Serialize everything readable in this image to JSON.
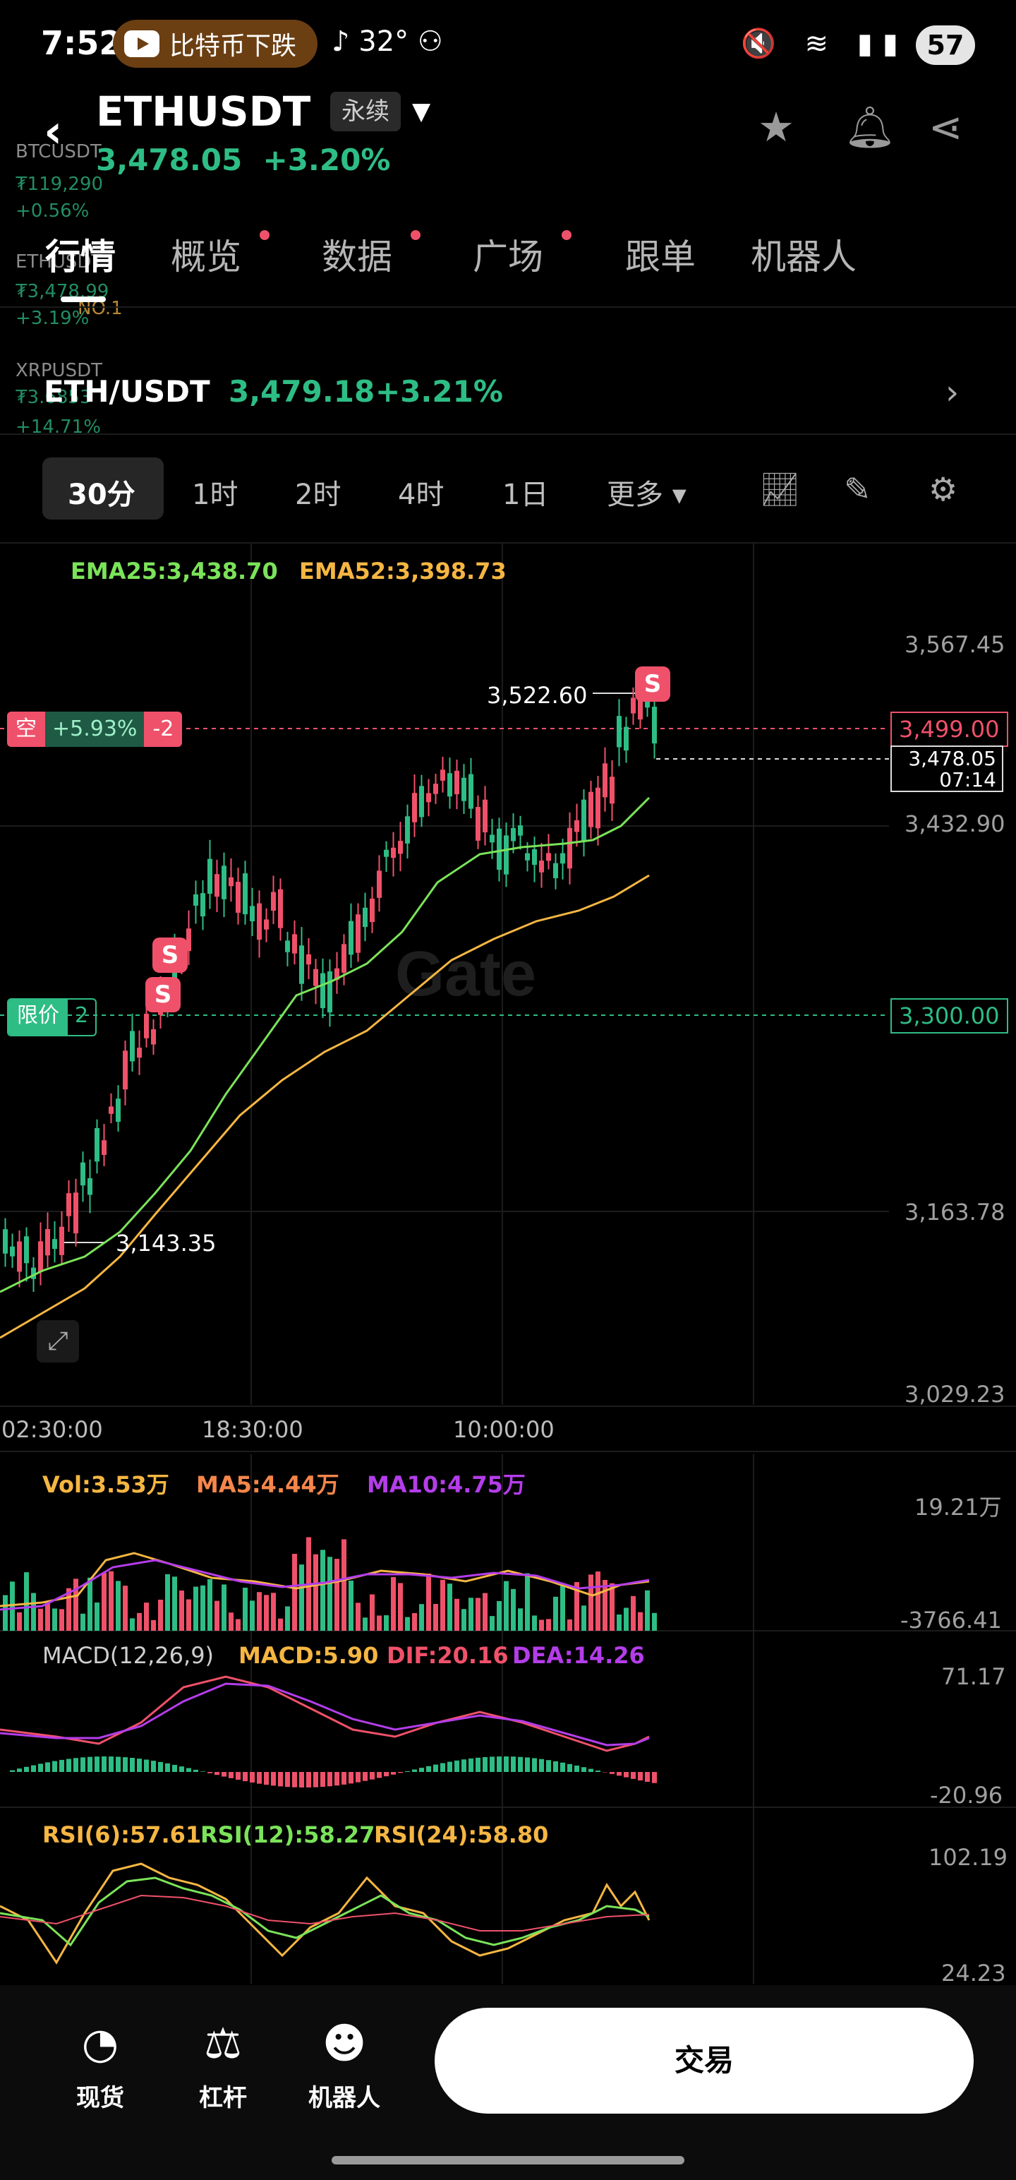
{
  "status_bar": {
    "time": "7:52",
    "notification_text": "比特币下跌",
    "temperature": "32°",
    "battery": "57"
  },
  "header": {
    "symbol": "ETHUSDT",
    "contract_type": "永续",
    "last_price": "3,478.05",
    "change_pct": "+3.20%"
  },
  "ghost_ticker": [
    {
      "label": "BTCUSDT",
      "price": "₮119,290",
      "change": "+0.56%"
    },
    {
      "label": "ETHUSDT",
      "price": "₮3,478.99",
      "change": "+3.19%"
    },
    {
      "label": "NO.1",
      "price": "",
      "change": ""
    },
    {
      "label": "XRPUSDT",
      "price": "₮3.6853",
      "change": "+14.71%"
    }
  ],
  "tabs": [
    {
      "label": "行情",
      "active": true,
      "dot": false
    },
    {
      "label": "概览",
      "active": false,
      "dot": true
    },
    {
      "label": "数据",
      "active": false,
      "dot": true
    },
    {
      "label": "广场",
      "active": false,
      "dot": true
    },
    {
      "label": "跟单",
      "active": false,
      "dot": false
    },
    {
      "label": "机器人",
      "active": false,
      "dot": false
    }
  ],
  "pair_row": {
    "pair": "ETH/USDT",
    "price": "3,479.18",
    "change": "+3.21%"
  },
  "intervals": [
    "30分",
    "1时",
    "2时",
    "4时",
    "1日",
    "更多"
  ],
  "chart": {
    "ema25": "EMA25:3,438.70",
    "ema52": "EMA52:3,398.73",
    "y_axis": [
      "3,567.45",
      "3,432.90",
      "3,163.78",
      "3,029.23"
    ],
    "x_axis": [
      "02:30:00",
      "18:30:00",
      "10:00:00"
    ],
    "high_label": "3,522.60",
    "low_label": "3,143.35",
    "short_position": {
      "label": "空",
      "pnl": "+5.93%",
      "size": "-2",
      "price": "3,499.00"
    },
    "current_price": "3,478.05",
    "countdown": "07:14",
    "limit_order": {
      "label": "限价",
      "qty": "2",
      "price": "3,300.00"
    },
    "signal_tag": "S",
    "watermark": "Gate"
  },
  "volume": {
    "vol": "Vol:3.53万",
    "ma5": "MA5:4.44万",
    "ma10": "MA10:4.75万",
    "y_top": "19.21万",
    "y_bottom": "-3766.41"
  },
  "macd": {
    "params": "MACD(12,26,9)",
    "macd": "MACD:5.90",
    "dif": "DIF:20.16",
    "dea": "DEA:14.26",
    "y_top": "71.17",
    "y_bottom": "-20.96"
  },
  "rsi": {
    "rsi6": "RSI(6):57.61",
    "rsi12": "RSI(12):58.27",
    "rsi24": "RSI(24):58.80",
    "y_top": "102.19",
    "y_bottom": "24.23"
  },
  "bottom_nav": [
    {
      "label": "现货",
      "icon": "spot-icon"
    },
    {
      "label": "杠杆",
      "icon": "leverage-icon"
    },
    {
      "label": "机器人",
      "icon": "robot-icon"
    }
  ],
  "trade_button": "交易",
  "colors": {
    "up": "#2ebd85",
    "down": "#f0516a",
    "ema25": "#7be35a",
    "ema52": "#f5b642",
    "dif": "#f0516a",
    "dea": "#b43dea"
  }
}
